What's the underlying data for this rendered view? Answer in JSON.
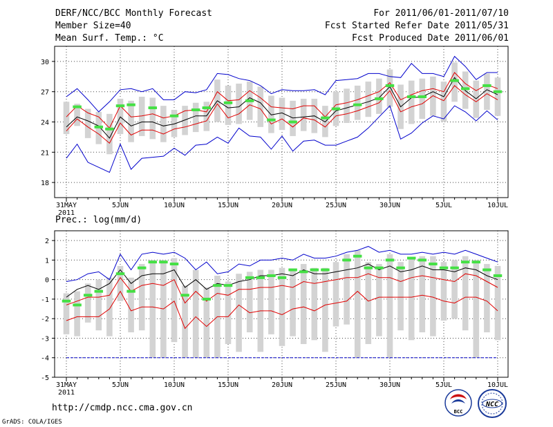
{
  "header": {
    "title": "DERF/NCC/BCC Monthly Forecast",
    "member_size": "Member Size=40",
    "variable": "Mean Surf. Temp.: °C",
    "period": "For 2011/06/01-2011/07/10",
    "started": "Fcst Started Refer Date 2011/05/31",
    "produced": "Fcst Produced Date 2011/06/01"
  },
  "footer": {
    "url": "http://cmdp.ncc.cma.gov.cn",
    "credit": "GrADS: COLA/IGES",
    "logo_bcc": "BCC",
    "logo_ncc": "NCC"
  },
  "colors": {
    "spread_bar": "#d3d3d3",
    "ensemble_mean": "#000000",
    "inner_bounds": "#e00000",
    "outer_bounds": "#0000cc",
    "observation_marker": "#44e044",
    "grid": "#444444"
  },
  "chart_data": [
    {
      "type": "line",
      "title": "Mean Surf. Temp.: °C",
      "x_dates": [
        "31MAY",
        "1JUN",
        "2JUN",
        "3JUN",
        "4JUN",
        "5JUN",
        "6JUN",
        "7JUN",
        "8JUN",
        "9JUN",
        "10JUN",
        "11JUN",
        "12JUN",
        "13JUN",
        "14JUN",
        "15JUN",
        "16JUN",
        "17JUN",
        "18JUN",
        "19JUN",
        "20JUN",
        "21JUN",
        "22JUN",
        "23JUN",
        "24JUN",
        "25JUN",
        "26JUN",
        "27JUN",
        "28JUN",
        "29JUN",
        "30JUN",
        "1JUL",
        "2JUL",
        "3JUL",
        "4JUL",
        "5JUL",
        "6JUL",
        "7JUL",
        "8JUL",
        "9JUL",
        "10JUL"
      ],
      "xticks": [
        {
          "i": 0,
          "label": "31MAY",
          "sub": "2011"
        },
        {
          "i": 5,
          "label": "5JUN"
        },
        {
          "i": 10,
          "label": "10JUN"
        },
        {
          "i": 15,
          "label": "15JUN"
        },
        {
          "i": 20,
          "label": "20JUN"
        },
        {
          "i": 25,
          "label": "25JUN"
        },
        {
          "i": 30,
          "label": "30JUN"
        },
        {
          "i": 35,
          "label": "5JUL"
        },
        {
          "i": 40,
          "label": "10JUL"
        }
      ],
      "ylim": [
        16.5,
        31.5
      ],
      "yticks": [
        {
          "v": 18,
          "label": "18"
        },
        {
          "v": 21,
          "label": "21"
        },
        {
          "v": 24,
          "label": "24"
        },
        {
          "v": 27,
          "label": "27"
        },
        {
          "v": 30,
          "label": "30"
        }
      ],
      "series": [
        {
          "name": "outer upper",
          "color": "#0000cc",
          "values": [
            26.5,
            27.3,
            26.2,
            25.0,
            26.0,
            27.2,
            27.3,
            27.0,
            27.3,
            26.2,
            26.2,
            27.0,
            26.9,
            27.2,
            28.8,
            28.7,
            28.3,
            28.1,
            27.6,
            26.8,
            27.2,
            27.1,
            27.1,
            27.2,
            26.7,
            28.1,
            28.2,
            28.3,
            28.8,
            28.8,
            28.5,
            28.4,
            29.8,
            28.8,
            28.8,
            28.5,
            30.5,
            29.5,
            28.2,
            28.9,
            28.9
          ]
        },
        {
          "name": "inner upper",
          "color": "#e00000",
          "values": [
            24.5,
            25.6,
            24.9,
            24.5,
            23.4,
            25.6,
            24.5,
            24.6,
            24.8,
            24.4,
            24.6,
            25.1,
            25.2,
            25.0,
            27.0,
            26.1,
            26.2,
            27.1,
            26.4,
            25.5,
            25.4,
            25.3,
            25.6,
            25.6,
            24.5,
            25.7,
            25.9,
            26.2,
            26.6,
            27.0,
            27.9,
            26.2,
            26.7,
            27.1,
            27.3,
            27.0,
            28.9,
            27.8,
            27.1,
            27.7,
            27.3
          ]
        },
        {
          "name": "ensemble mean",
          "color": "#000000",
          "values": [
            23.5,
            24.5,
            24.1,
            23.6,
            22.4,
            24.5,
            23.6,
            24.0,
            24.0,
            23.6,
            23.8,
            24.2,
            24.6,
            24.6,
            26.1,
            25.4,
            25.5,
            26.4,
            25.9,
            24.7,
            24.9,
            24.4,
            24.5,
            24.6,
            24.0,
            25.1,
            25.4,
            25.7,
            26.0,
            26.4,
            27.5,
            25.5,
            26.4,
            26.5,
            27.0,
            26.5,
            28.4,
            27.1,
            26.3,
            27.2,
            26.7
          ]
        },
        {
          "name": "inner lower",
          "color": "#e00000",
          "values": [
            23.1,
            24.3,
            23.5,
            22.8,
            21.9,
            23.9,
            22.7,
            23.2,
            23.2,
            22.8,
            23.3,
            23.5,
            23.8,
            24.1,
            25.8,
            24.4,
            24.8,
            25.7,
            25.3,
            23.8,
            24.3,
            23.5,
            24.4,
            24.2,
            23.5,
            24.6,
            24.8,
            25.1,
            25.5,
            25.9,
            27.1,
            25.0,
            25.5,
            25.8,
            26.6,
            26.1,
            27.6,
            26.7,
            26.0,
            26.8,
            26.2
          ]
        },
        {
          "name": "outer lower",
          "color": "#0000cc",
          "values": [
            20.4,
            21.8,
            20.0,
            19.5,
            19.0,
            21.8,
            19.3,
            20.4,
            20.5,
            20.6,
            21.4,
            20.7,
            21.7,
            21.8,
            22.5,
            21.9,
            23.4,
            22.6,
            22.5,
            21.3,
            22.6,
            21.1,
            22.1,
            22.2,
            21.7,
            21.7,
            22.1,
            22.5,
            23.4,
            24.5,
            25.6,
            22.3,
            22.9,
            23.9,
            24.6,
            24.3,
            25.6,
            25.0,
            24.1,
            25.1,
            24.2
          ]
        }
      ],
      "spread_bars": [
        [
          22.8,
          26.0
        ],
        [
          23.6,
          25.8
        ],
        [
          22.4,
          25.3
        ],
        [
          21.8,
          25.0
        ],
        [
          20.8,
          24.8
        ],
        [
          22.8,
          26.3
        ],
        [
          22.0,
          26.1
        ],
        [
          22.6,
          26.5
        ],
        [
          22.3,
          26.4
        ],
        [
          22.0,
          25.6
        ],
        [
          22.5,
          25.2
        ],
        [
          22.7,
          25.6
        ],
        [
          23.0,
          25.9
        ],
        [
          23.1,
          26.0
        ],
        [
          24.0,
          28.2
        ],
        [
          23.7,
          27.6
        ],
        [
          23.8,
          27.8
        ],
        [
          24.2,
          28.0
        ],
        [
          23.5,
          27.5
        ],
        [
          22.9,
          26.6
        ],
        [
          23.2,
          26.4
        ],
        [
          22.6,
          26.1
        ],
        [
          23.1,
          26.3
        ],
        [
          22.9,
          26.3
        ],
        [
          22.5,
          25.6
        ],
        [
          23.6,
          27.0
        ],
        [
          23.9,
          27.3
        ],
        [
          24.2,
          27.6
        ],
        [
          24.5,
          28.0
        ],
        [
          24.8,
          28.3
        ],
        [
          25.5,
          29.2
        ],
        [
          23.3,
          27.7
        ],
        [
          23.8,
          28.1
        ],
        [
          24.3,
          28.3
        ],
        [
          24.6,
          28.5
        ],
        [
          24.0,
          28.0
        ],
        [
          26.0,
          29.9
        ],
        [
          25.3,
          29.0
        ],
        [
          24.4,
          28.1
        ],
        [
          25.2,
          28.8
        ],
        [
          24.6,
          28.4
        ]
      ],
      "observations": [
        null,
        25.5,
        null,
        23.5,
        23.3,
        25.6,
        25.7,
        null,
        25.4,
        null,
        24.6,
        null,
        25.2,
        25.4,
        null,
        25.9,
        null,
        26.1,
        null,
        24.2,
        null,
        24.0,
        null,
        null,
        24.4,
        25.3,
        null,
        25.7,
        null,
        26.3,
        27.6,
        null,
        26.5,
        26.5,
        null,
        null,
        28.1,
        27.3,
        null,
        27.6,
        27.0
      ]
    },
    {
      "type": "line",
      "title": "Prec.: log(mm/d)",
      "x_dates": [
        "31MAY",
        "1JUN",
        "2JUN",
        "3JUN",
        "4JUN",
        "5JUN",
        "6JUN",
        "7JUN",
        "8JUN",
        "9JUN",
        "10JUN",
        "11JUN",
        "12JUN",
        "13JUN",
        "14JUN",
        "15JUN",
        "16JUN",
        "17JUN",
        "18JUN",
        "19JUN",
        "20JUN",
        "21JUN",
        "22JUN",
        "23JUN",
        "24JUN",
        "25JUN",
        "26JUN",
        "27JUN",
        "28JUN",
        "29JUN",
        "30JUN",
        "1JUL",
        "2JUL",
        "3JUL",
        "4JUL",
        "5JUL",
        "6JUL",
        "7JUL",
        "8JUL",
        "9JUL",
        "10JUL"
      ],
      "xticks": [
        {
          "i": 0,
          "label": "31MAY",
          "sub": "2011"
        },
        {
          "i": 5,
          "label": "5JUN"
        },
        {
          "i": 10,
          "label": "10JUN"
        },
        {
          "i": 15,
          "label": "15JUN"
        },
        {
          "i": 20,
          "label": "20JUN"
        },
        {
          "i": 25,
          "label": "25JUN"
        },
        {
          "i": 30,
          "label": "30JUN"
        },
        {
          "i": 35,
          "label": "5JUL"
        },
        {
          "i": 40,
          "label": "10JUL"
        }
      ],
      "ylim": [
        -5,
        2.5
      ],
      "yticks": [
        {
          "v": -5,
          "label": "-5"
        },
        {
          "v": -4,
          "label": "-4"
        },
        {
          "v": -3,
          "label": "-3"
        },
        {
          "v": -2,
          "label": "-2"
        },
        {
          "v": -1,
          "label": "-1"
        },
        {
          "v": 0,
          "label": "0"
        },
        {
          "v": 1,
          "label": "1"
        },
        {
          "v": 2,
          "label": "2"
        }
      ],
      "series": [
        {
          "name": "outer upper",
          "color": "#0000cc",
          "values": [
            -0.1,
            0.0,
            0.3,
            0.4,
            0.0,
            1.3,
            0.5,
            1.3,
            1.4,
            1.3,
            1.4,
            1.1,
            0.5,
            0.9,
            0.3,
            0.4,
            0.8,
            0.7,
            1.0,
            1.0,
            1.1,
            1.0,
            1.3,
            1.1,
            1.1,
            1.2,
            1.4,
            1.5,
            1.7,
            1.4,
            1.5,
            1.3,
            1.3,
            1.4,
            1.3,
            1.4,
            1.3,
            1.5,
            1.3,
            1.1,
            0.9
          ]
        },
        {
          "name": "ensemble mean",
          "color": "#000000",
          "values": [
            -0.9,
            -0.5,
            -0.3,
            -0.5,
            -0.2,
            0.5,
            -0.2,
            0.2,
            0.3,
            0.3,
            0.5,
            -0.4,
            0.0,
            -0.5,
            -0.2,
            -0.3,
            -0.1,
            0.0,
            0.2,
            0.2,
            0.3,
            0.2,
            0.5,
            0.3,
            0.3,
            0.4,
            0.5,
            0.6,
            0.8,
            0.5,
            0.7,
            0.4,
            0.5,
            0.7,
            0.5,
            0.5,
            0.4,
            0.6,
            0.5,
            0.2,
            0.0
          ]
        },
        {
          "name": "inner lower",
          "color": "#e00000",
          "values": [
            -1.3,
            -1.1,
            -0.9,
            -0.9,
            -0.8,
            0.1,
            -0.6,
            -0.3,
            -0.2,
            -0.3,
            0.0,
            -1.2,
            -0.6,
            -1.1,
            -0.7,
            -0.8,
            -0.5,
            -0.5,
            -0.4,
            -0.4,
            -0.3,
            -0.4,
            -0.1,
            -0.2,
            -0.1,
            0.0,
            0.1,
            0.1,
            0.3,
            0.1,
            0.1,
            -0.1,
            0.1,
            0.2,
            0.1,
            0.0,
            -0.1,
            0.3,
            0.2,
            -0.1,
            -0.4
          ]
        },
        {
          "name": "outer lower",
          "color": "#e00000",
          "values": [
            -2.1,
            -1.9,
            -1.9,
            -1.9,
            -1.5,
            -0.6,
            -1.6,
            -1.4,
            -1.4,
            -1.5,
            -1.1,
            -2.5,
            -1.9,
            -2.4,
            -1.9,
            -1.9,
            -1.3,
            -1.7,
            -1.6,
            -1.6,
            -1.8,
            -1.5,
            -1.4,
            -1.6,
            -1.3,
            -1.2,
            -1.1,
            -0.6,
            -1.1,
            -0.9,
            -0.9,
            -0.9,
            -0.9,
            -0.8,
            -0.9,
            -1.1,
            -1.2,
            -0.9,
            -0.9,
            -1.1,
            -1.6
          ]
        },
        {
          "name": "lower floor",
          "color": "#0000cc",
          "values": [
            -4.0,
            -4.0,
            -4.0,
            -4.0,
            -4.0,
            -4.0,
            -4.0,
            -4.0,
            -4.0,
            -4.0,
            -4.0,
            -4.0,
            -4.0,
            -4.0,
            -4.0,
            -4.0,
            -4.0,
            -4.0,
            -4.0,
            -4.0,
            -4.0,
            -4.0,
            -4.0,
            -4.0,
            -4.0,
            -4.0,
            -4.0,
            -4.0,
            -4.0,
            -4.0,
            -4.0,
            -4.0,
            -4.0,
            -4.0,
            -4.0,
            -4.0,
            -4.0,
            -4.0,
            -4.0,
            -4.0,
            -4.0
          ]
        }
      ],
      "spread_bars": [
        [
          -2.8,
          -0.7
        ],
        [
          -2.9,
          -0.6
        ],
        [
          -2.2,
          -0.2
        ],
        [
          -2.6,
          0.0
        ],
        [
          -2.9,
          0.1
        ],
        [
          -1.1,
          0.7
        ],
        [
          -2.7,
          0.1
        ],
        [
          -2.6,
          0.8
        ],
        [
          -4.0,
          1.0
        ],
        [
          -4.0,
          1.0
        ],
        [
          -3.2,
          1.1
        ],
        [
          -4.0,
          -0.3
        ],
        [
          -4.0,
          0.5
        ],
        [
          -4.0,
          -0.4
        ],
        [
          -4.0,
          0.2
        ],
        [
          -3.3,
          -0.1
        ],
        [
          -3.7,
          0.3
        ],
        [
          -2.7,
          0.4
        ],
        [
          -3.7,
          0.5
        ],
        [
          -2.8,
          0.5
        ],
        [
          -3.4,
          0.6
        ],
        [
          -2.9,
          0.5
        ],
        [
          -3.3,
          0.8
        ],
        [
          -3.1,
          0.6
        ],
        [
          -3.7,
          0.6
        ],
        [
          -2.4,
          0.9
        ],
        [
          -2.3,
          1.3
        ],
        [
          -4.0,
          1.5
        ],
        [
          -3.3,
          0.9
        ],
        [
          -2.9,
          0.8
        ],
        [
          -4.0,
          1.3
        ],
        [
          -2.6,
          0.9
        ],
        [
          -3.1,
          1.1
        ],
        [
          -2.7,
          1.2
        ],
        [
          -2.9,
          1.2
        ],
        [
          -2.1,
          0.9
        ],
        [
          -2.0,
          1.0
        ],
        [
          -2.6,
          1.2
        ],
        [
          -4.0,
          1.0
        ],
        [
          -2.7,
          0.8
        ],
        [
          -3.1,
          0.7
        ]
      ],
      "observations": [
        -1.1,
        -1.3,
        -0.8,
        -0.6,
        null,
        0.3,
        -0.6,
        0.6,
        0.9,
        0.9,
        0.8,
        -0.8,
        null,
        -1.0,
        -0.3,
        -0.3,
        null,
        0.1,
        0.1,
        0.2,
        0.1,
        0.5,
        0.4,
        0.5,
        0.5,
        null,
        1.0,
        1.2,
        0.6,
        0.6,
        1.0,
        0.6,
        1.1,
        1.0,
        0.8,
        0.6,
        0.6,
        0.9,
        0.9,
        0.5,
        0.2
      ]
    }
  ]
}
